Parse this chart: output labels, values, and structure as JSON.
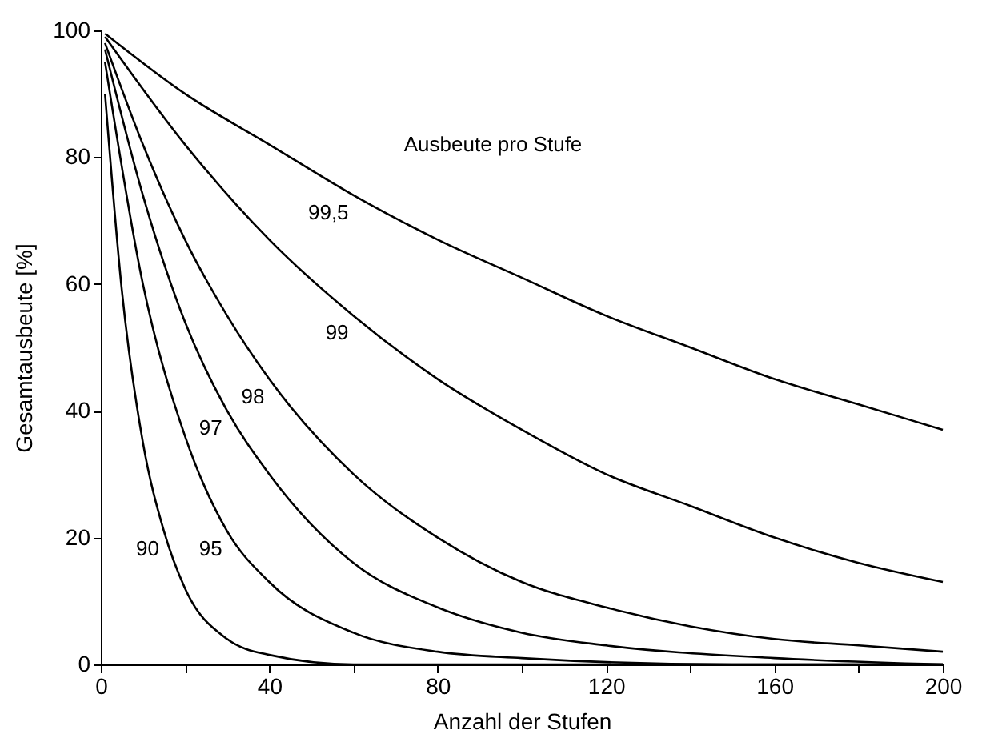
{
  "chart_data": {
    "type": "line",
    "xlabel": "Anzahl der Stufen",
    "ylabel": "Gesamtausbeute [%]",
    "legend_title": "Ausbeute pro Stufe",
    "xlim": [
      0,
      200
    ],
    "ylim": [
      0,
      100
    ],
    "xticks": [
      0,
      {
        "value": 20,
        "label": null
      },
      40,
      {
        "value": 60,
        "label": null
      },
      80,
      {
        "value": 100,
        "label": null
      },
      120,
      {
        "value": 140,
        "label": null
      },
      160,
      {
        "value": 180,
        "label": null
      },
      200
    ],
    "yticks": [
      0,
      20,
      40,
      60,
      80,
      100
    ],
    "grid": false,
    "legend": false,
    "marker": "none",
    "line_style": "solid",
    "series": [
      {
        "name": "99,5",
        "color": "#000000",
        "x": [
          1,
          20,
          40,
          60,
          80,
          100,
          120,
          140,
          160,
          180,
          200
        ],
        "values": [
          99.5,
          90,
          82,
          74,
          67,
          61,
          55,
          50,
          45,
          41,
          37
        ]
      },
      {
        "name": "99",
        "color": "#000000",
        "x": [
          1,
          20,
          40,
          60,
          80,
          100,
          120,
          140,
          160,
          180,
          200
        ],
        "values": [
          99,
          82,
          67,
          55,
          45,
          37,
          30,
          25,
          20,
          16,
          13
        ]
      },
      {
        "name": "98",
        "color": "#000000",
        "x": [
          1,
          10,
          20,
          30,
          40,
          60,
          80,
          100,
          120,
          140,
          160,
          180,
          200
        ],
        "values": [
          98,
          82,
          67,
          55,
          45,
          30,
          20,
          13,
          9,
          6,
          4,
          3,
          2
        ]
      },
      {
        "name": "97",
        "color": "#000000",
        "x": [
          1,
          10,
          20,
          30,
          40,
          60,
          80,
          100,
          120,
          160,
          200
        ],
        "values": [
          97,
          74,
          54,
          40,
          30,
          16,
          9,
          5,
          3,
          1,
          0
        ]
      },
      {
        "name": "95",
        "color": "#000000",
        "x": [
          1,
          10,
          20,
          30,
          40,
          60,
          80,
          100,
          150,
          200
        ],
        "values": [
          95,
          60,
          36,
          21,
          13,
          5,
          2,
          1,
          0,
          0
        ]
      },
      {
        "name": "90",
        "color": "#000000",
        "x": [
          1,
          5,
          10,
          15,
          20,
          30,
          40,
          60,
          200
        ],
        "values": [
          90,
          59,
          35,
          21,
          12,
          4,
          1.5,
          0,
          0
        ]
      }
    ]
  }
}
